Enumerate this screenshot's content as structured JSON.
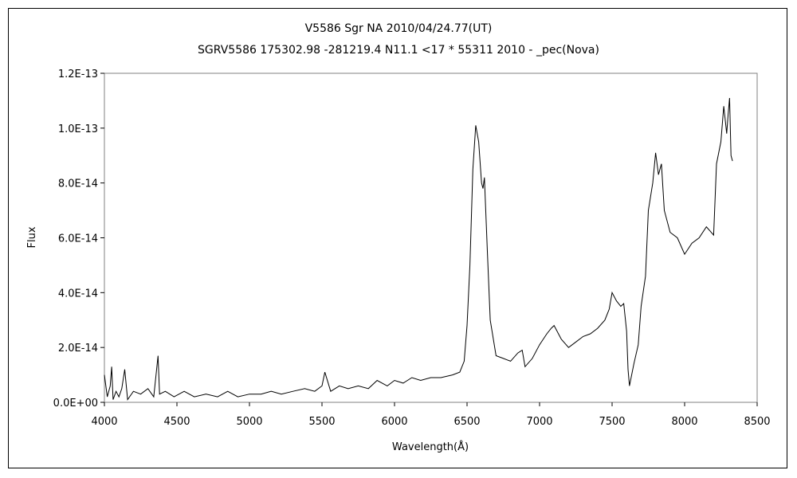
{
  "chart_data": {
    "type": "line",
    "title": "V5586 Sgr    NA    2010/04/24.77(UT)",
    "subtitle": "SGRV5586 175302.98 -281219.4 N11.1 <17 * 55311 2010 - _pec(Nova)",
    "xlabel": "Wavelength(Å)",
    "ylabel": "Flux",
    "xlim": [
      4000,
      8500
    ],
    "ylim": [
      0,
      1.2e-13
    ],
    "xticks": [
      "4000",
      "4500",
      "5000",
      "5500",
      "6000",
      "6500",
      "7000",
      "7500",
      "8000",
      "8500"
    ],
    "yticks": [
      "0.0E+00",
      "2.0E-14",
      "4.0E-14",
      "6.0E-14",
      "8.0E-14",
      "1.0E-13",
      "1.2E-13"
    ],
    "grid": false,
    "legend": "none",
    "line_color": "#000000",
    "series": [
      {
        "x": [
          4000,
          4020,
          4040,
          4050,
          4060,
          4080,
          4100,
          4120,
          4140,
          4160,
          4200,
          4250,
          4300,
          4340,
          4370,
          4380,
          4420,
          4480,
          4550,
          4620,
          4700,
          4780,
          4850,
          4920,
          5000,
          5080,
          5150,
          5220,
          5300,
          5380,
          5450,
          5500,
          5520,
          5560,
          5620,
          5680,
          5750,
          5820,
          5880,
          5950,
          6000,
          6060,
          6120,
          6180,
          6250,
          6320,
          6400,
          6450,
          6480,
          6500,
          6520,
          6540,
          6560,
          6580,
          6600,
          6610,
          6620,
          6640,
          6660,
          6700,
          6750,
          6800,
          6850,
          6880,
          6900,
          6950,
          7000,
          7050,
          7080,
          7100,
          7150,
          7200,
          7250,
          7300,
          7350,
          7400,
          7450,
          7480,
          7500,
          7530,
          7560,
          7580,
          7600,
          7610,
          7620,
          7650,
          7680,
          7700,
          7730,
          7750,
          7780,
          7800,
          7820,
          7840,
          7860,
          7900,
          7950,
          8000,
          8050,
          8100,
          8150,
          8200,
          8220,
          8250,
          8270,
          8290,
          8300,
          8310,
          8320,
          8330
        ],
        "y": [
          1e-14,
          2e-15,
          6e-15,
          1.3e-14,
          1e-15,
          4e-15,
          2e-15,
          5e-15,
          1.2e-14,
          1e-15,
          4e-15,
          3e-15,
          5e-15,
          2e-15,
          1.7e-14,
          3e-15,
          4e-15,
          2e-15,
          4e-15,
          2e-15,
          3e-15,
          2e-15,
          4e-15,
          2e-15,
          3e-15,
          3e-15,
          4e-15,
          3e-15,
          4e-15,
          5e-15,
          4e-15,
          6e-15,
          1.1e-14,
          4e-15,
          6e-15,
          5e-15,
          6e-15,
          5e-15,
          8e-15,
          6e-15,
          8e-15,
          7e-15,
          9e-15,
          8e-15,
          9e-15,
          9e-15,
          1e-14,
          1.1e-14,
          1.5e-14,
          2.8e-14,
          5e-14,
          8.5e-14,
          1.01e-13,
          9.5e-14,
          8e-14,
          7.8e-14,
          8.2e-14,
          5.5e-14,
          3e-14,
          1.7e-14,
          1.6e-14,
          1.5e-14,
          1.8e-14,
          1.9e-14,
          1.3e-14,
          1.6e-14,
          2.1e-14,
          2.5e-14,
          2.7e-14,
          2.8e-14,
          2.3e-14,
          2e-14,
          2.2e-14,
          2.4e-14,
          2.5e-14,
          2.7e-14,
          3e-14,
          3.4e-14,
          4e-14,
          3.7e-14,
          3.5e-14,
          3.6e-14,
          2.6e-14,
          1.2e-14,
          6e-15,
          1.4e-14,
          2.1e-14,
          3.5e-14,
          4.6e-14,
          7e-14,
          8e-14,
          9.1e-14,
          8.3e-14,
          8.7e-14,
          7e-14,
          6.2e-14,
          6e-14,
          5.4e-14,
          5.8e-14,
          6e-14,
          6.4e-14,
          6.1e-14,
          8.7e-14,
          9.5e-14,
          1.08e-13,
          9.8e-14,
          1.05e-13,
          1.11e-13,
          9e-14,
          8.8e-14
        ]
      }
    ]
  }
}
